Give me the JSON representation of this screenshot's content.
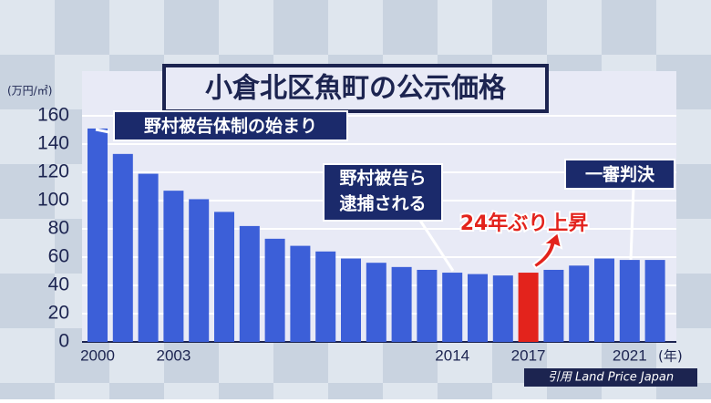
{
  "chart_data": {
    "type": "bar",
    "title": "小倉北区魚町の公示価格",
    "y_unit": "(万円/㎡)",
    "x_unit": "(年)",
    "source": "引用 Land Price Japan",
    "categories": [
      "2000",
      null,
      null,
      "2003",
      null,
      null,
      null,
      null,
      null,
      null,
      null,
      null,
      null,
      null,
      "2014",
      null,
      null,
      "2017",
      null,
      null,
      null,
      "2021",
      null
    ],
    "values": [
      151,
      133,
      119,
      107,
      101,
      92,
      82,
      73,
      68,
      64,
      59,
      56,
      53,
      51,
      49,
      48,
      47,
      49,
      51,
      54,
      59,
      58,
      58
    ],
    "colors": [
      "#3c5fd8",
      "#3c5fd8",
      "#3c5fd8",
      "#3c5fd8",
      "#3c5fd8",
      "#3c5fd8",
      "#3c5fd8",
      "#3c5fd8",
      "#3c5fd8",
      "#3c5fd8",
      "#3c5fd8",
      "#3c5fd8",
      "#3c5fd8",
      "#3c5fd8",
      "#3c5fd8",
      "#3c5fd8",
      "#3c5fd8",
      "#e3231c",
      "#3c5fd8",
      "#3c5fd8",
      "#3c5fd8",
      "#3c5fd8",
      "#3c5fd8"
    ],
    "ylim": [
      0,
      160
    ],
    "yticks": [
      0,
      20,
      40,
      60,
      80,
      100,
      120,
      140,
      160
    ],
    "grid": true,
    "annotations": [
      "野村被告体制の始まり",
      "野村被告ら",
      "逮捕される",
      "24年ぶり上昇",
      "一審判決"
    ]
  }
}
